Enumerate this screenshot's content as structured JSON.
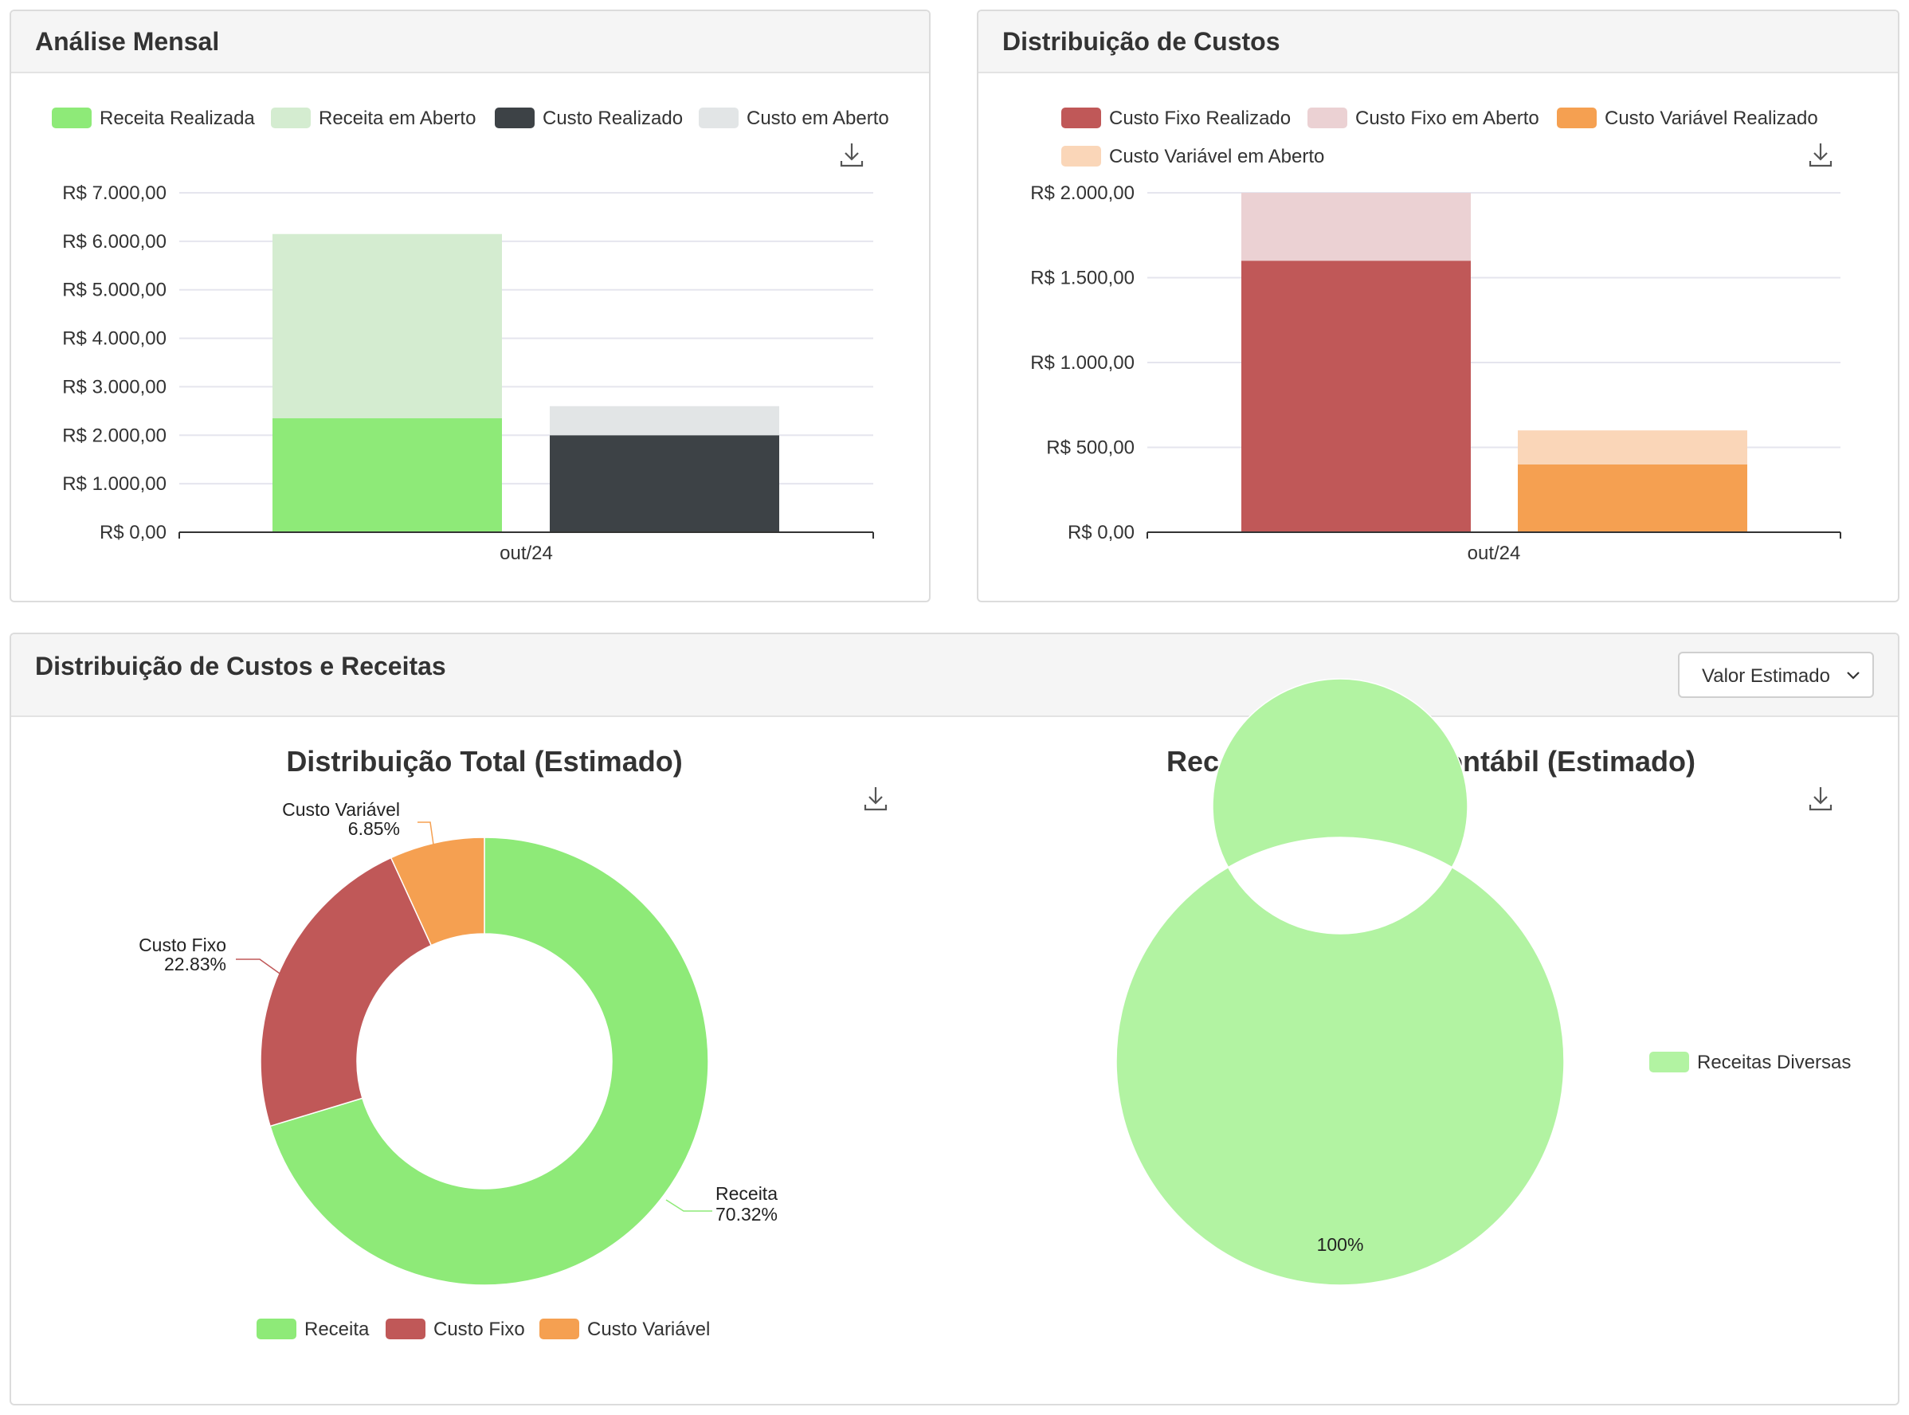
{
  "colors": {
    "receita_realizada": "#8eea78",
    "receita_aberto": "#d4ecd0",
    "custo_realizado": "#3d4246",
    "custo_aberto": "#e2e5e6",
    "custo_fixo_realizado": "#c05858",
    "custo_fixo_aberto": "#ebd1d3",
    "custo_variavel_realizado": "#f5a051",
    "custo_variavel_aberto": "#fad6b8",
    "receita_diversas": "#b2f3a2",
    "grid": "#e5e5ee",
    "axis": "#333333"
  },
  "panel1": {
    "title": "Análise Mensal",
    "download_icon": "download-icon",
    "chart_data": {
      "type": "bar",
      "stacked": true,
      "categories": [
        "out/24"
      ],
      "y_ticks": [
        "R$ 0,00",
        "R$ 1.000,00",
        "R$ 2.000,00",
        "R$ 3.000,00",
        "R$ 4.000,00",
        "R$ 5.000,00",
        "R$ 6.000,00",
        "R$ 7.000,00"
      ],
      "ylim": [
        0,
        7000
      ],
      "grid": true,
      "legend_position": "top",
      "series": [
        {
          "name": "Receita Realizada",
          "stack": "receita",
          "values": [
            2350
          ],
          "color_key": "receita_realizada"
        },
        {
          "name": "Receita em Aberto",
          "stack": "receita",
          "values": [
            3800
          ],
          "color_key": "receita_aberto"
        },
        {
          "name": "Custo Realizado",
          "stack": "custo",
          "values": [
            2000
          ],
          "color_key": "custo_realizado"
        },
        {
          "name": "Custo em Aberto",
          "stack": "custo",
          "values": [
            600
          ],
          "color_key": "custo_aberto"
        }
      ]
    }
  },
  "panel2": {
    "title": "Distribuição de Custos",
    "download_icon": "download-icon",
    "chart_data": {
      "type": "bar",
      "stacked": true,
      "categories": [
        "out/24"
      ],
      "y_ticks": [
        "R$ 0,00",
        "R$ 500,00",
        "R$ 1.000,00",
        "R$ 1.500,00",
        "R$ 2.000,00"
      ],
      "ylim": [
        0,
        2000
      ],
      "grid": true,
      "legend_position": "top",
      "series": [
        {
          "name": "Custo Fixo Realizado",
          "stack": "fixo",
          "values": [
            1600
          ],
          "color_key": "custo_fixo_realizado"
        },
        {
          "name": "Custo Fixo em Aberto",
          "stack": "fixo",
          "values": [
            400
          ],
          "color_key": "custo_fixo_aberto"
        },
        {
          "name": "Custo Variável Realizado",
          "stack": "variavel",
          "values": [
            400
          ],
          "color_key": "custo_variavel_realizado"
        },
        {
          "name": "Custo Variável em Aberto",
          "stack": "variavel",
          "values": [
            200
          ],
          "color_key": "custo_variavel_aberto"
        }
      ]
    }
  },
  "panel3": {
    "title": "Distribuição de Custos e Receitas",
    "select": {
      "value": "Valor Estimado",
      "icon": "chevron-down-icon"
    },
    "chart_left": {
      "title": "Distribuição Total (Estimado)",
      "download_icon": "download-icon",
      "chart_data": {
        "type": "pie",
        "donut": true,
        "legend_position": "bottom",
        "slices": [
          {
            "name": "Receita",
            "value": 70.32,
            "label": "70.32%",
            "color_key": "receita_realizada"
          },
          {
            "name": "Custo Fixo",
            "value": 22.83,
            "label": "22.83%",
            "color_key": "custo_fixo_realizado"
          },
          {
            "name": "Custo Variável",
            "value": 6.85,
            "label": "6.85%",
            "color_key": "custo_variavel_realizado"
          }
        ]
      }
    },
    "chart_right": {
      "title": "Receita por Grupo Contábil (Estimado)",
      "download_icon": "download-icon",
      "chart_data": {
        "type": "pie",
        "donut": true,
        "legend_position": "right",
        "slices": [
          {
            "name": "Receitas Diversas",
            "value": 100,
            "label": "100%",
            "color_key": "receita_diversas"
          }
        ]
      }
    }
  }
}
